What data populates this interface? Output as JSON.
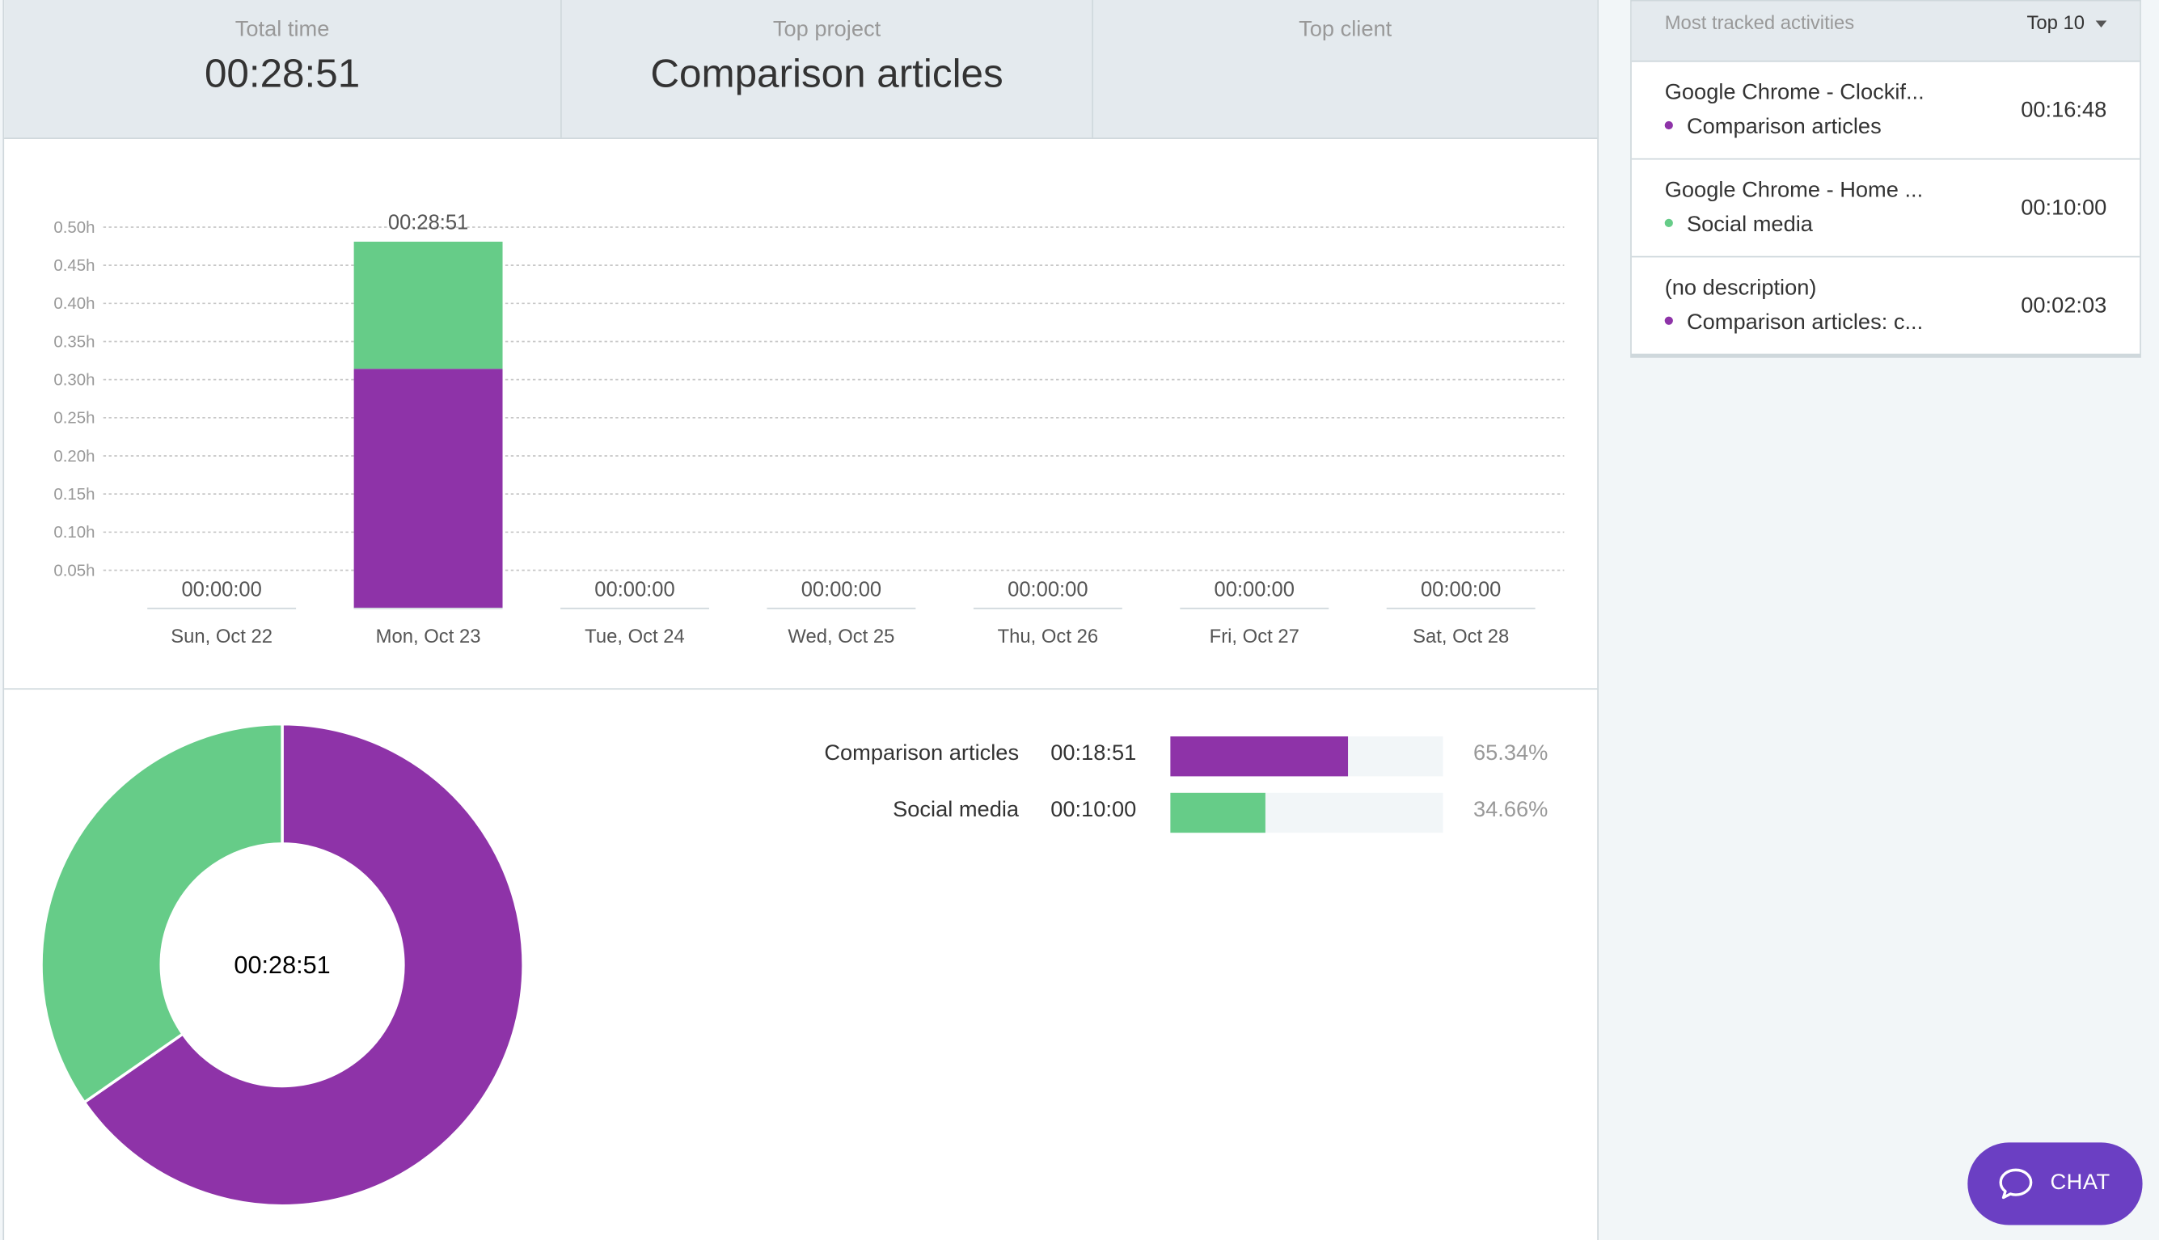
{
  "summary": {
    "total_time_label": "Total time",
    "total_time_value": "00:28:51",
    "top_project_label": "Top project",
    "top_project_value": "Comparison articles",
    "top_client_label": "Top client",
    "top_client_value": ""
  },
  "colors": {
    "comparison_articles": "#8e33a8",
    "social_media": "#66cc88",
    "chat_button": "#6b3fc3"
  },
  "chart_data": [
    {
      "type": "bar",
      "stacked": true,
      "categories": [
        "Sun, Oct 22",
        "Mon, Oct 23",
        "Tue, Oct 24",
        "Wed, Oct 25",
        "Thu, Oct 26",
        "Fri, Oct 27",
        "Sat, Oct 28"
      ],
      "series": [
        {
          "name": "Comparison articles",
          "values": [
            0,
            0.3142,
            0,
            0,
            0,
            0,
            0
          ]
        },
        {
          "name": "Social media",
          "values": [
            0,
            0.1667,
            0,
            0,
            0,
            0,
            0
          ]
        }
      ],
      "bar_labels": [
        "00:00:00",
        "00:28:51",
        "00:00:00",
        "00:00:00",
        "00:00:00",
        "00:00:00",
        "00:00:00"
      ],
      "yticks": [
        "0.05h",
        "0.10h",
        "0.15h",
        "0.20h",
        "0.25h",
        "0.30h",
        "0.35h",
        "0.40h",
        "0.45h",
        "0.50h"
      ],
      "ylim": [
        0,
        0.5
      ],
      "grid": true
    },
    {
      "type": "pie",
      "donut": true,
      "center_label": "00:28:51",
      "slices": [
        {
          "name": "Comparison articles",
          "value": 65.34,
          "time": "00:18:51",
          "pct": "65.34%"
        },
        {
          "name": "Social media",
          "value": 34.66,
          "time": "00:10:00",
          "pct": "34.66%"
        }
      ]
    }
  ],
  "side": {
    "title": "Most tracked activities",
    "dropdown": "Top 10",
    "activities": [
      {
        "desc": "Google Chrome - Clockif...",
        "project": "Comparison articles",
        "duration": "00:16:48"
      },
      {
        "desc": "Google Chrome - Home ...",
        "project": "Social media",
        "duration": "00:10:00"
      },
      {
        "desc": "(no description)",
        "project": "Comparison articles: c...",
        "duration": "00:02:03"
      }
    ]
  },
  "chat": {
    "label": "CHAT"
  }
}
